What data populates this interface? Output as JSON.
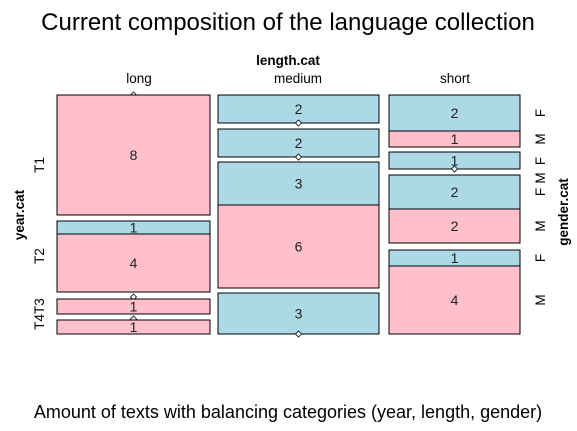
{
  "title": "Current composition of the language collection",
  "caption": "Amount of texts with balancing categories (year, length, gender)",
  "colors": {
    "F": "#add8e6",
    "M": "#ffc0cb",
    "border": "#000000"
  },
  "chart_data": {
    "type": "mosaic",
    "top_variable": "length.cat",
    "left_variable": "year.cat",
    "right_variable": "gender.cat",
    "length_levels": [
      "long",
      "medium",
      "short"
    ],
    "year_levels": [
      "T1",
      "T2",
      "T4T3"
    ],
    "year_tick_labels": [
      "T1",
      "T2",
      "T4T3"
    ],
    "gender_levels": [
      "F",
      "M"
    ],
    "cells": [
      {
        "length": "long",
        "year": "T1",
        "gender": "F",
        "count": 0
      },
      {
        "length": "long",
        "year": "T1",
        "gender": "M",
        "count": 8
      },
      {
        "length": "long",
        "year": "T2",
        "gender": "F",
        "count": 1
      },
      {
        "length": "long",
        "year": "T2",
        "gender": "M",
        "count": 4
      },
      {
        "length": "long",
        "year": "T3",
        "gender": "F",
        "count": 0
      },
      {
        "length": "long",
        "year": "T3",
        "gender": "M",
        "count": 1
      },
      {
        "length": "long",
        "year": "T4",
        "gender": "F",
        "count": 0
      },
      {
        "length": "long",
        "year": "T4",
        "gender": "M",
        "count": 1
      },
      {
        "length": "medium",
        "year": "T1",
        "gender": "F",
        "count": 2
      },
      {
        "length": "medium",
        "year": "T1",
        "gender": "M",
        "count": 0
      },
      {
        "length": "medium",
        "year": "T2",
        "gender": "F",
        "count": 2
      },
      {
        "length": "medium",
        "year": "T2",
        "gender": "M",
        "count": 0
      },
      {
        "length": "medium",
        "year": "T3",
        "gender": "F",
        "count": 3
      },
      {
        "length": "medium",
        "year": "T3",
        "gender": "M",
        "count": 6
      },
      {
        "length": "medium",
        "year": "T4",
        "gender": "F",
        "count": 3
      },
      {
        "length": "medium",
        "year": "T4",
        "gender": "M",
        "count": 0
      },
      {
        "length": "short",
        "year": "T1",
        "gender": "F",
        "count": 2
      },
      {
        "length": "short",
        "year": "T1",
        "gender": "M",
        "count": 1
      },
      {
        "length": "short",
        "year": "T2",
        "gender": "F",
        "count": 1
      },
      {
        "length": "short",
        "year": "T2",
        "gender": "M",
        "count": 0
      },
      {
        "length": "short",
        "year": "T3",
        "gender": "F",
        "count": 2
      },
      {
        "length": "short",
        "year": "T3",
        "gender": "M",
        "count": 2
      },
      {
        "length": "short",
        "year": "T4",
        "gender": "F",
        "count": 1
      },
      {
        "length": "short",
        "year": "T4",
        "gender": "M",
        "count": 4
      }
    ]
  }
}
